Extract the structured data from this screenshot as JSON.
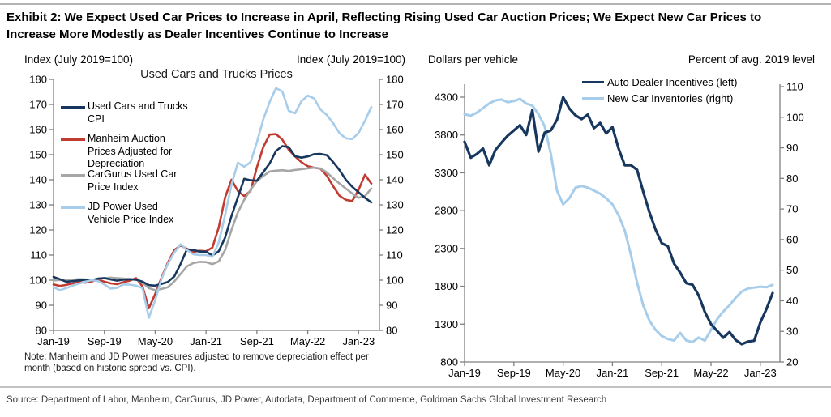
{
  "header": {
    "title_lines": [
      "Exhibit 2: We Expect Used Car Prices to Increase in April, Reflecting Rising Used Car Auction Prices; We Expect New Car Prices to",
      "Increase More Modestly as Dealer Incentives Continue to Increase"
    ]
  },
  "footer": {
    "source": "Source: Department of Labor, Manheim, CarGurus, JD Power, Autodata, Department of Commerce, Goldman Sachs Global Investment Research"
  },
  "chart_data": [
    {
      "type": "line",
      "title": "Used Cars and Trucks Prices",
      "left_axis_label": "Index (July 2019=100)",
      "right_axis_label": "Index (July 2019=100)",
      "note": "Note: Manheim and JD Power measures adjusted to remove depreciation effect per month (based on historic spread vs. CPI).",
      "ylim": [
        80,
        180
      ],
      "yticks": [
        80,
        90,
        100,
        110,
        120,
        130,
        140,
        150,
        160,
        170,
        180
      ],
      "x_start": "Jan-19",
      "x_end": "Mar-23",
      "xtick_positions": [
        0,
        8,
        16,
        24,
        32,
        40,
        48
      ],
      "xtick_labels": [
        "Jan-19",
        "Sep-19",
        "May-20",
        "Jan-21",
        "Sep-21",
        "May-22",
        "Jan-23"
      ],
      "grid": false,
      "legend_position": "upper-left-inside",
      "series": [
        {
          "name": "Used Cars and Trucks CPI",
          "color": "#17375e",
          "axis": "left",
          "values": [
            101.3,
            100.4,
            99.4,
            99.6,
            99.9,
            100.2,
            100.0,
            100.6,
            100.8,
            100.3,
            99.8,
            100.2,
            100.4,
            100.2,
            99.4,
            98.0,
            97.8,
            98.5,
            99.3,
            101.5,
            106.5,
            112.3,
            112.0,
            111.4,
            111.4,
            109.8,
            111.5,
            117.0,
            125.5,
            133.0,
            140.4,
            139.8,
            139.6,
            143.0,
            146.5,
            151.5,
            153.4,
            153.0,
            149.4,
            148.8,
            149.3,
            150.2,
            150.3,
            149.8,
            147.0,
            143.8,
            140.0,
            137.2,
            135.0,
            132.8,
            131.0
          ]
        },
        {
          "name": "Manheim Auction Prices Adjusted for Depreciation",
          "color": "#c13b31",
          "axis": "left",
          "values": [
            98.3,
            97.7,
            98.1,
            98.7,
            99.2,
            99.0,
            99.5,
            100.2,
            99.4,
            98.7,
            98.4,
            99.2,
            99.8,
            100.8,
            97.5,
            88.8,
            94.5,
            101.0,
            107.0,
            112.0,
            113.8,
            112.5,
            111.3,
            111.7,
            111.5,
            113.0,
            121.0,
            133.0,
            140.0,
            135.5,
            133.5,
            135.5,
            145.0,
            153.0,
            158.0,
            158.2,
            156.0,
            152.0,
            149.3,
            147.0,
            145.4,
            144.8,
            144.4,
            141.6,
            137.4,
            133.6,
            132.0,
            131.5,
            136.0,
            142.0,
            138.5
          ]
        },
        {
          "name": "CarGurus Used Car Price Index",
          "color": "#a6a6a6",
          "axis": "left",
          "values": [
            99.9,
            100.1,
            100.0,
            100.2,
            100.4,
            100.3,
            100.0,
            100.5,
            100.8,
            101.0,
            100.8,
            100.6,
            100.4,
            100.2,
            99.0,
            96.8,
            96.0,
            96.5,
            97.2,
            99.5,
            102.5,
            105.5,
            106.8,
            107.3,
            107.2,
            106.4,
            107.5,
            112.0,
            120.0,
            127.0,
            132.0,
            136.0,
            139.5,
            141.5,
            143.3,
            143.6,
            143.8,
            143.5,
            143.9,
            144.2,
            144.5,
            144.8,
            144.5,
            142.9,
            140.6,
            138.5,
            136.5,
            134.5,
            132.8,
            133.5,
            136.5
          ]
        },
        {
          "name": "JD Power Used Vehicle Price Index",
          "color": "#a7cdea",
          "axis": "left",
          "values": [
            97.2,
            96.0,
            96.8,
            97.8,
            98.6,
            99.4,
            100.0,
            99.6,
            98.3,
            96.6,
            96.9,
            98.3,
            98.2,
            97.8,
            96.8,
            85.0,
            92.0,
            100.5,
            106.5,
            111.0,
            114.3,
            112.0,
            110.3,
            110.0,
            110.0,
            109.3,
            115.0,
            126.0,
            138.0,
            146.8,
            145.2,
            147.0,
            155.0,
            164.0,
            171.0,
            176.5,
            175.2,
            167.5,
            166.5,
            171.3,
            173.5,
            172.4,
            168.0,
            165.8,
            162.5,
            158.5,
            156.5,
            156.2,
            158.7,
            163.5,
            169.0
          ]
        }
      ]
    },
    {
      "type": "line",
      "title": "",
      "left_axis_label": "Dollars per vehicle",
      "right_axis_label": "Percent of avg. 2019 level",
      "left_ylim": [
        800,
        4300
      ],
      "left_yticks": [
        800,
        1300,
        1800,
        2300,
        2800,
        3300,
        3800,
        4300
      ],
      "right_ylim": [
        20,
        110
      ],
      "right_yticks": [
        20,
        30,
        40,
        50,
        60,
        70,
        80,
        90,
        100,
        110
      ],
      "x_start": "Jan-19",
      "x_end": "Mar-23",
      "xtick_positions": [
        0,
        8,
        16,
        24,
        32,
        40,
        48
      ],
      "xtick_labels": [
        "Jan-19",
        "Sep-19",
        "May-20",
        "Jan-21",
        "Sep-21",
        "May-22",
        "Jan-23"
      ],
      "grid": false,
      "legend_position": "upper-right-inside",
      "series": [
        {
          "name": "Auto Dealer Incentives (left)",
          "color": "#17375e",
          "axis": "left",
          "values": [
            3710,
            3500,
            3550,
            3620,
            3400,
            3600,
            3700,
            3790,
            3860,
            3930,
            3800,
            4130,
            3580,
            3830,
            3860,
            4000,
            4300,
            4150,
            4060,
            4010,
            4070,
            3890,
            3960,
            3820,
            3905,
            3620,
            3400,
            3400,
            3340,
            3050,
            2780,
            2550,
            2370,
            2330,
            2100,
            1980,
            1840,
            1820,
            1680,
            1460,
            1300,
            1210,
            1120,
            1195,
            1090,
            1035,
            1070,
            1080,
            1320,
            1500,
            1710
          ]
        },
        {
          "name": "New Car Inventories (right)",
          "color": "#a7cdea",
          "axis": "right",
          "values": [
            101,
            100.5,
            101.5,
            103,
            104.5,
            105.5,
            105.8,
            104.9,
            105.3,
            106.0,
            104.5,
            103.8,
            101.0,
            97.0,
            88.0,
            76.0,
            71.5,
            73.5,
            77.0,
            77.5,
            77.0,
            76.0,
            75.0,
            73.5,
            71.5,
            68.0,
            63.0,
            55.0,
            46.0,
            38.5,
            33.5,
            30.5,
            28.5,
            27.5,
            27.0,
            29.5,
            27.0,
            26.5,
            28.0,
            27.0,
            30.5,
            34.0,
            36.5,
            38.5,
            41.0,
            43.0,
            44.0,
            44.3,
            44.6,
            44.4,
            45.2
          ]
        }
      ]
    }
  ]
}
